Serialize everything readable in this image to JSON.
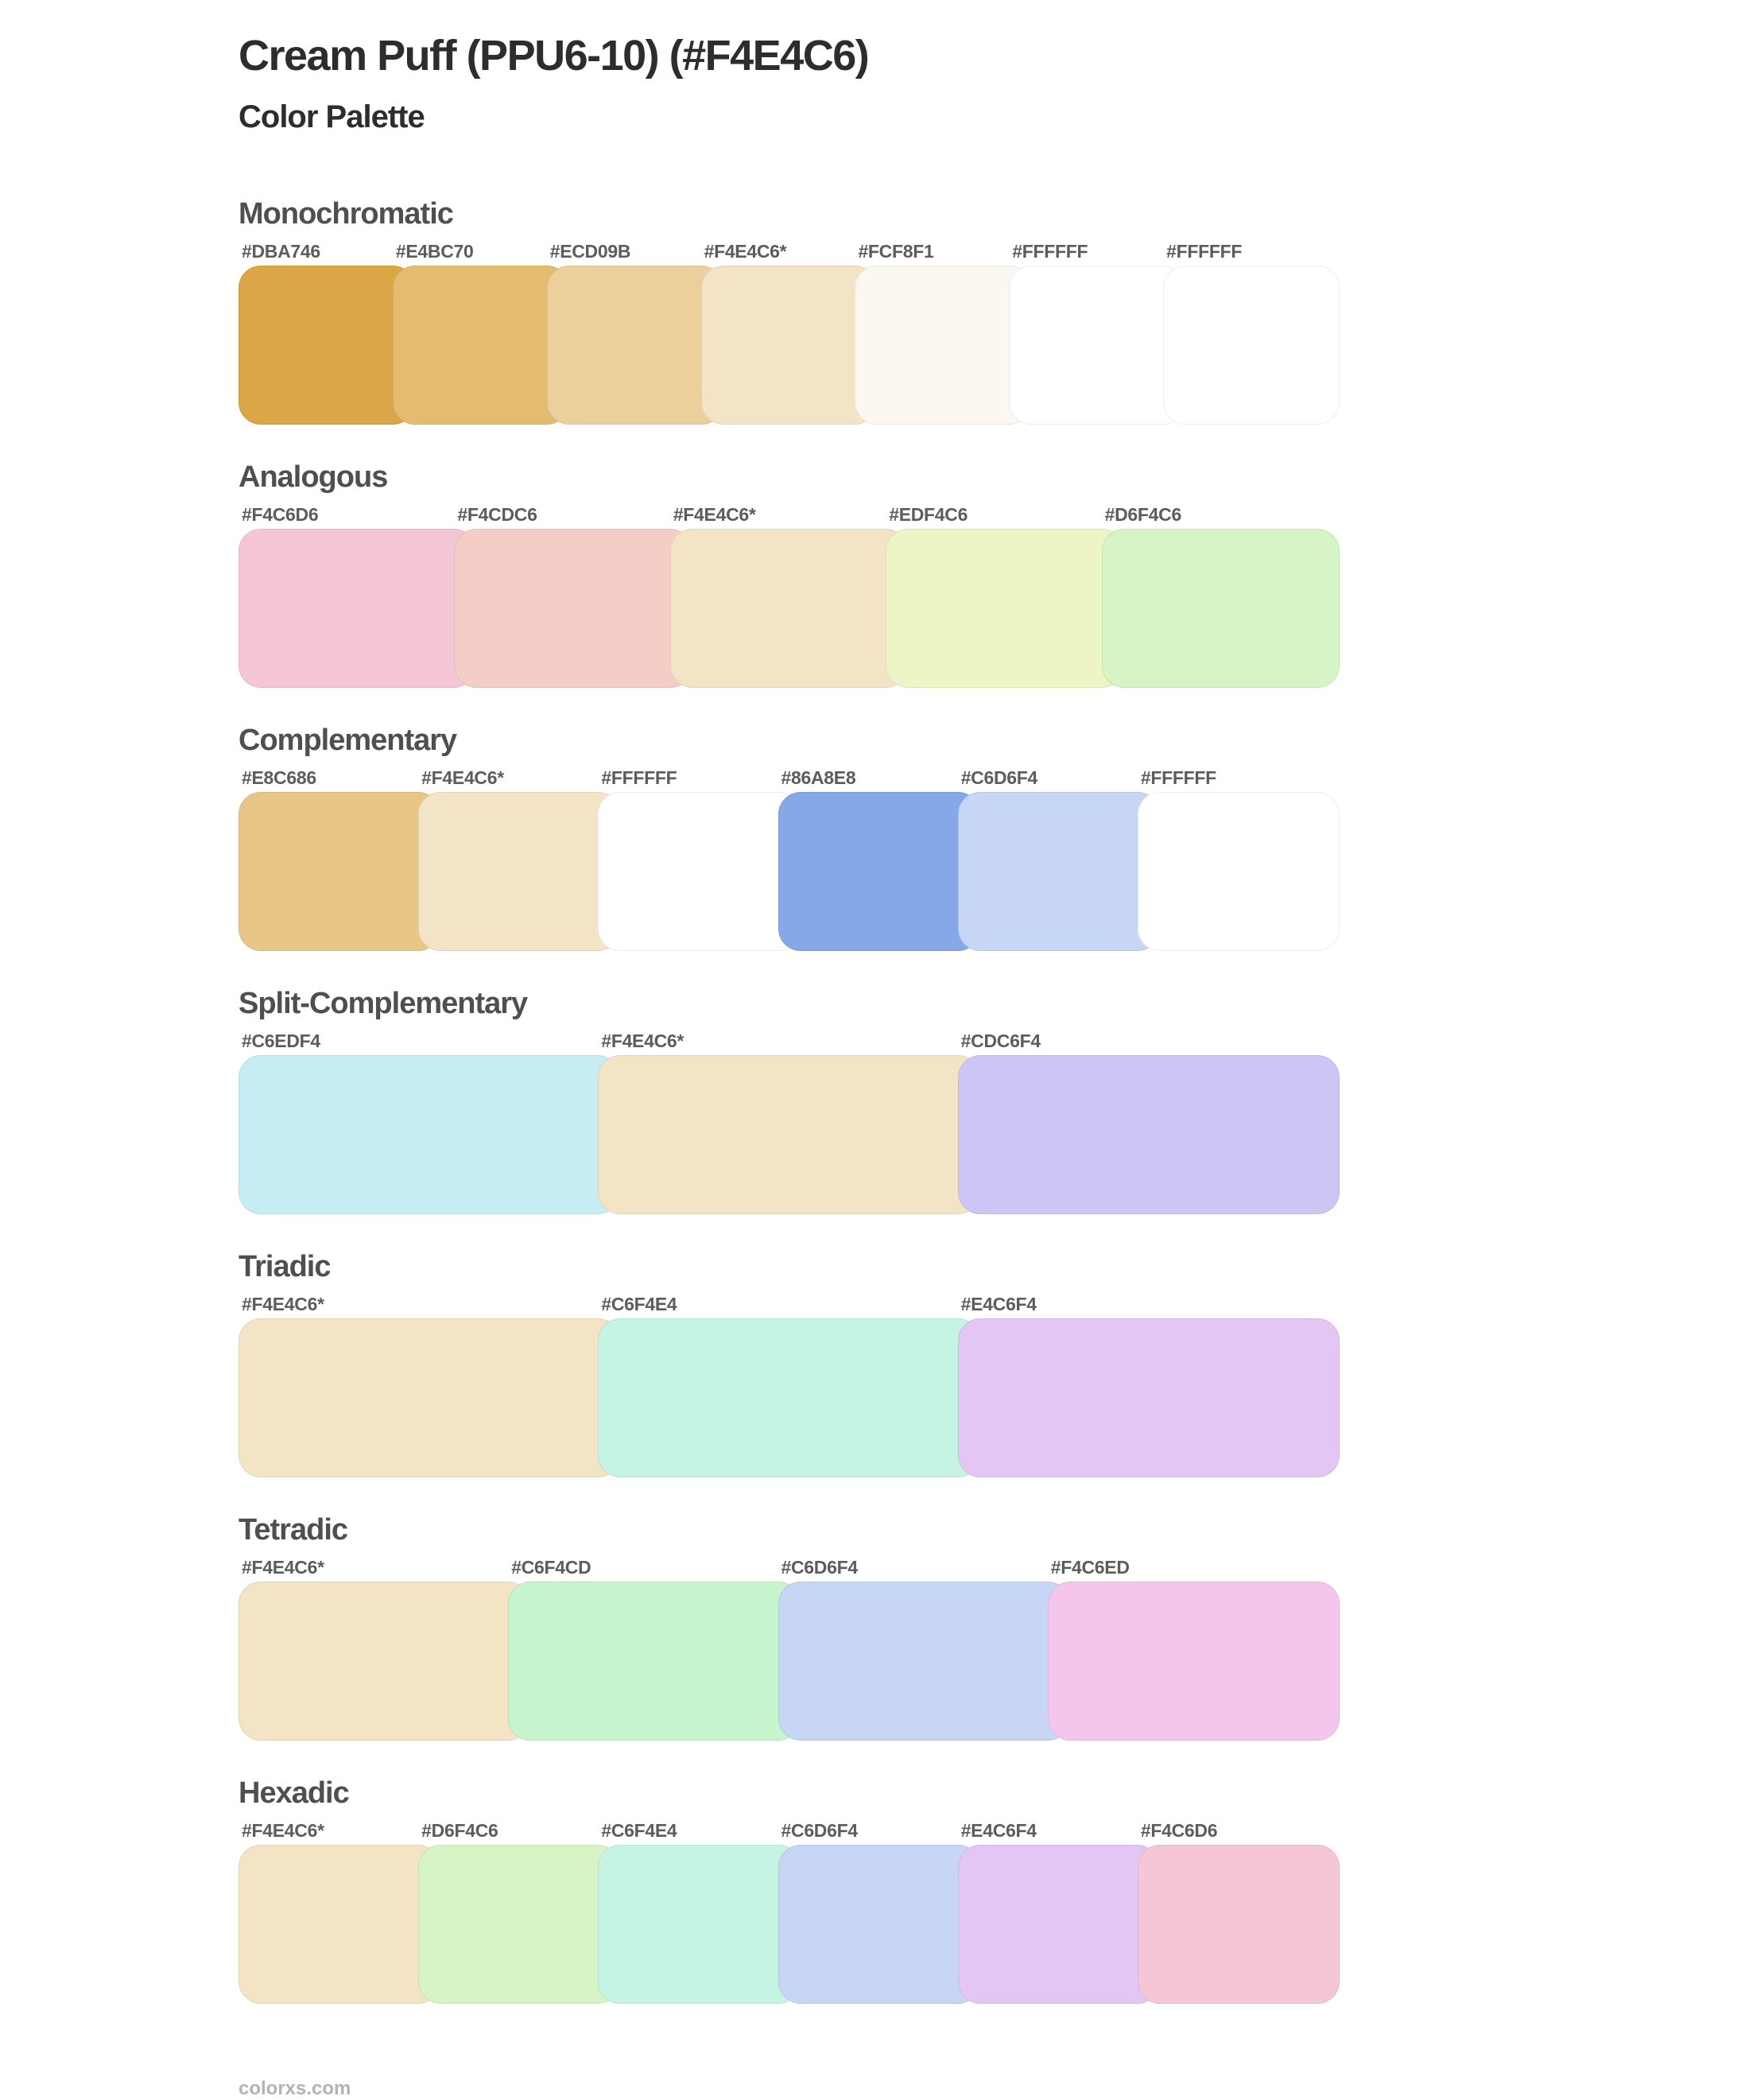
{
  "page": {
    "title": "Cream Puff (PPU6-10) (#F4E4C6)",
    "subtitle": "Color Palette",
    "base_color": "#F4E4C6",
    "footer_link": "colorxs.com"
  },
  "sections": [
    {
      "name": "Monochromatic",
      "swatches": [
        {
          "label": "#DBA746",
          "color": "#DBA746"
        },
        {
          "label": "#E4BC70",
          "color": "#E4BC70"
        },
        {
          "label": "#ECD09B",
          "color": "#ECD09B"
        },
        {
          "label": "#F4E4C6*",
          "color": "#F4E4C6"
        },
        {
          "label": "#FCF8F1",
          "color": "#FCF8F1"
        },
        {
          "label": "#FFFFFF",
          "color": "#FFFFFF"
        },
        {
          "label": "#FFFFFF",
          "color": "#FFFFFF"
        }
      ]
    },
    {
      "name": "Analogous",
      "swatches": [
        {
          "label": "#F4C6D6",
          "color": "#F4C6D6"
        },
        {
          "label": "#F4CDC6",
          "color": "#F4CDC6"
        },
        {
          "label": "#F4E4C6*",
          "color": "#F4E4C6"
        },
        {
          "label": "#EDF4C6",
          "color": "#EDF4C6"
        },
        {
          "label": "#D6F4C6",
          "color": "#D6F4C6"
        }
      ]
    },
    {
      "name": "Complementary",
      "swatches": [
        {
          "label": "#E8C686",
          "color": "#E8C686"
        },
        {
          "label": "#F4E4C6*",
          "color": "#F4E4C6"
        },
        {
          "label": "#FFFFFF",
          "color": "#FFFFFF"
        },
        {
          "label": "#86A8E8",
          "color": "#86A8E8"
        },
        {
          "label": "#C6D6F4",
          "color": "#C6D6F4"
        },
        {
          "label": "#FFFFFF",
          "color": "#FFFFFF"
        }
      ]
    },
    {
      "name": "Split-Complementary",
      "swatches": [
        {
          "label": "#C6EDF4",
          "color": "#C6EDF4"
        },
        {
          "label": "#F4E4C6*",
          "color": "#F4E4C6"
        },
        {
          "label": "#CDC6F4",
          "color": "#CDC6F4"
        }
      ]
    },
    {
      "name": "Triadic",
      "swatches": [
        {
          "label": "#F4E4C6*",
          "color": "#F4E4C6"
        },
        {
          "label": "#C6F4E4",
          "color": "#C6F4E4"
        },
        {
          "label": "#E4C6F4",
          "color": "#E4C6F4"
        }
      ]
    },
    {
      "name": "Tetradic",
      "swatches": [
        {
          "label": "#F4E4C6*",
          "color": "#F4E4C6"
        },
        {
          "label": "#C6F4CD",
          "color": "#C6F4CD"
        },
        {
          "label": "#C6D6F4",
          "color": "#C6D6F4"
        },
        {
          "label": "#F4C6ED",
          "color": "#F4C6ED"
        }
      ]
    },
    {
      "name": "Hexadic",
      "swatches": [
        {
          "label": "#F4E4C6*",
          "color": "#F4E4C6"
        },
        {
          "label": "#D6F4C6",
          "color": "#D6F4C6"
        },
        {
          "label": "#C6F4E4",
          "color": "#C6F4E4"
        },
        {
          "label": "#C6D6F4",
          "color": "#C6D6F4"
        },
        {
          "label": "#E4C6F4",
          "color": "#E4C6F4"
        },
        {
          "label": "#F4C6D6",
          "color": "#F4C6D6"
        }
      ]
    }
  ]
}
